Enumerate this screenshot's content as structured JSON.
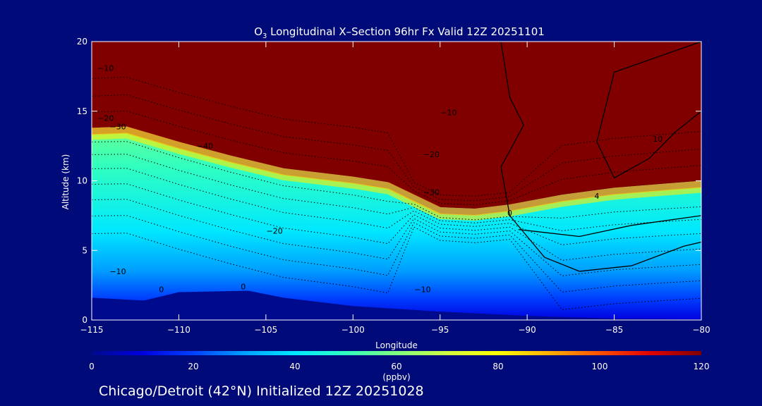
{
  "chart_data": {
    "type": "heatmap",
    "title_species": "O",
    "title_subscript": "3",
    "title_rest": " Longitudinal X–Section 96hr  Fx Valid 12Z 20251101",
    "xlabel": "Longitude",
    "ylabel": "Altitude (km)",
    "xlim": [
      -115,
      -80
    ],
    "ylim": [
      0,
      20
    ],
    "x_ticks": [
      -115,
      -110,
      -105,
      -100,
      -95,
      -90,
      -85,
      -80
    ],
    "x_tick_labels": [
      "−115",
      "−110",
      "−105",
      "−100",
      "−95",
      "−90",
      "−85",
      "−80"
    ],
    "y_ticks": [
      0,
      5,
      10,
      15,
      20
    ],
    "y_tick_labels": [
      "0",
      "5",
      "10",
      "15",
      "20"
    ],
    "colorbar": {
      "min": 0,
      "max": 120,
      "ticks": [
        0,
        20,
        40,
        60,
        80,
        100,
        120
      ],
      "tick_labels": [
        "0",
        "20",
        "40",
        "60",
        "80",
        "100",
        "120"
      ],
      "units": "(ppbv)",
      "colors": [
        "#000a8c",
        "#0000e0",
        "#0040ff",
        "#00a0ff",
        "#00e8ff",
        "#30ffc0",
        "#80ff80",
        "#d0ff40",
        "#ffff00",
        "#ffb000",
        "#ff5000",
        "#e00000",
        "#800000"
      ]
    },
    "tropopause_height_km": [
      {
        "lon": -115,
        "km": 13.8
      },
      {
        "lon": -113,
        "km": 13.9
      },
      {
        "lon": -110,
        "km": 12.8
      },
      {
        "lon": -107,
        "km": 11.8
      },
      {
        "lon": -104,
        "km": 10.9
      },
      {
        "lon": -100,
        "km": 10.3
      },
      {
        "lon": -98,
        "km": 9.9
      },
      {
        "lon": -96.5,
        "km": 9.0
      },
      {
        "lon": -95,
        "km": 8.1
      },
      {
        "lon": -93,
        "km": 8.0
      },
      {
        "lon": -91,
        "km": 8.3
      },
      {
        "lon": -88,
        "km": 9.0
      },
      {
        "lon": -85,
        "km": 9.5
      },
      {
        "lon": -82,
        "km": 9.8
      },
      {
        "lon": -80,
        "km": 10.0
      }
    ],
    "surface_height_km": [
      {
        "lon": -115,
        "km": 1.6
      },
      {
        "lon": -112,
        "km": 1.4
      },
      {
        "lon": -110,
        "km": 2.0
      },
      {
        "lon": -106,
        "km": 2.1
      },
      {
        "lon": -104,
        "km": 1.6
      },
      {
        "lon": -100,
        "km": 1.0
      },
      {
        "lon": -95,
        "km": 0.6
      },
      {
        "lon": -90,
        "km": 0.3
      },
      {
        "lon": -85,
        "km": 0.1
      },
      {
        "lon": -80,
        "km": 0.05
      }
    ],
    "contour_labels": [
      {
        "text": "−10",
        "lon": -114.2,
        "km": 17.9
      },
      {
        "text": "−20",
        "lon": -114.2,
        "km": 14.3
      },
      {
        "text": "−30",
        "lon": -113.5,
        "km": 13.7
      },
      {
        "text": "−40",
        "lon": -108.5,
        "km": 12.3
      },
      {
        "text": "−30",
        "lon": -95.5,
        "km": 9.0
      },
      {
        "text": "−20",
        "lon": -95.5,
        "km": 11.7
      },
      {
        "text": "−10",
        "lon": -94.5,
        "km": 14.7
      },
      {
        "text": "−20",
        "lon": -104.5,
        "km": 6.2
      },
      {
        "text": "−10",
        "lon": -113.5,
        "km": 3.3
      },
      {
        "text": "0",
        "lon": -111.0,
        "km": 2.0
      },
      {
        "text": "0",
        "lon": -106.3,
        "km": 2.2
      },
      {
        "text": "−10",
        "lon": -96.0,
        "km": 2.0
      },
      {
        "text": "0",
        "lon": -91.0,
        "km": 7.5
      },
      {
        "text": "4",
        "lon": -86.0,
        "km": 8.7
      },
      {
        "text": "10",
        "lon": -82.5,
        "km": 12.8
      }
    ]
  },
  "footer_text": "Chicago/Detroit (42°N) Initialized 12Z 20251028"
}
